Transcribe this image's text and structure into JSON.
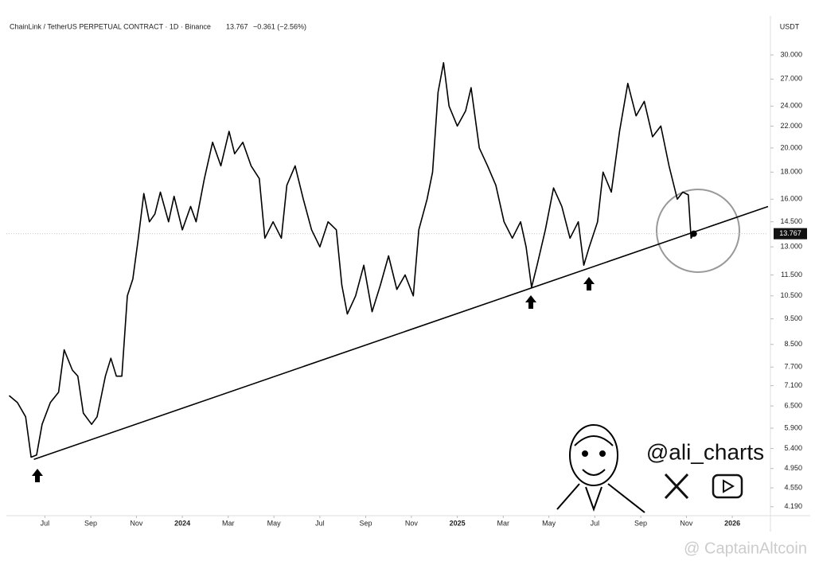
{
  "chart_data": {
    "type": "line",
    "title": "ChainLink / TetherUS PERPETUAL CONTRACT · 1D · Binance",
    "last_price": 13.767,
    "change": "−0.361 (−2.56%)",
    "y_axis_label": "USDT",
    "watermark": "@ali_charts",
    "source": "@ CaptainAltcoin",
    "log_scale": true,
    "grid": false,
    "x": [
      2023.37,
      2023.4,
      2023.43,
      2023.45,
      2023.47,
      2023.49,
      2023.52,
      2023.55,
      2023.57,
      2023.6,
      2023.62,
      2023.64,
      2023.67,
      2023.69,
      2023.72,
      2023.74,
      2023.76,
      2023.78,
      2023.8,
      2023.82,
      2023.84,
      2023.86,
      2023.88,
      2023.9,
      2023.92,
      2023.95,
      2023.97,
      2024.0,
      2024.03,
      2024.05,
      2024.08,
      2024.11,
      2024.14,
      2024.17,
      2024.19,
      2024.22,
      2024.25,
      2024.28,
      2024.3,
      2024.33,
      2024.36,
      2024.38,
      2024.41,
      2024.44,
      2024.47,
      2024.5,
      2024.53,
      2024.56,
      2024.58,
      2024.6,
      2024.63,
      2024.66,
      2024.69,
      2024.72,
      2024.75,
      2024.78,
      2024.81,
      2024.84,
      2024.86,
      2024.89,
      2024.91,
      2024.93,
      2024.95,
      2024.97,
      2025.0,
      2025.03,
      2025.05,
      2025.08,
      2025.11,
      2025.14,
      2025.17,
      2025.2,
      2025.23,
      2025.25,
      2025.27,
      2025.29,
      2025.32,
      2025.35,
      2025.38,
      2025.41,
      2025.44,
      2025.46,
      2025.48,
      2025.51,
      2025.53,
      2025.56,
      2025.59,
      2025.62,
      2025.65,
      2025.68,
      2025.71,
      2025.74,
      2025.77,
      2025.8,
      2025.82,
      2025.84,
      2025.85,
      2025.86
    ],
    "series": [
      {
        "color": "#000000",
        "values": [
          6.8,
          6.6,
          6.2,
          5.2,
          5.25,
          6.0,
          6.6,
          6.9,
          8.3,
          7.6,
          7.4,
          6.3,
          6.0,
          6.2,
          7.4,
          8.0,
          7.4,
          7.4,
          10.5,
          11.3,
          13.5,
          16.4,
          14.5,
          15.0,
          16.5,
          14.5,
          16.2,
          14.0,
          15.5,
          14.5,
          17.5,
          20.5,
          18.5,
          21.5,
          19.5,
          20.5,
          18.5,
          17.5,
          13.5,
          14.5,
          13.5,
          17.0,
          18.5,
          16.0,
          14.0,
          13.0,
          14.5,
          14.0,
          11.0,
          9.7,
          10.5,
          12.0,
          9.8,
          11.0,
          12.5,
          10.8,
          11.5,
          10.5,
          14.0,
          16.0,
          18.0,
          25.5,
          29.0,
          24.0,
          22.0,
          23.5,
          26.0,
          20.0,
          18.5,
          17.0,
          14.5,
          13.5,
          14.5,
          13.0,
          10.9,
          12.0,
          14.0,
          16.8,
          15.5,
          13.5,
          14.5,
          12.0,
          13.0,
          14.5,
          18.0,
          16.5,
          21.5,
          26.5,
          23.0,
          24.5,
          21.0,
          22.0,
          18.5,
          16.0,
          16.5,
          16.3,
          13.5,
          13.767
        ]
      }
    ],
    "trendline": {
      "x": [
        2023.46,
        2026.13
      ],
      "values": [
        5.15,
        15.5
      ]
    },
    "xlim": [
      2023.36,
      2026.13
    ],
    "xticks": [
      {
        "value": 2023.5,
        "label": "Jul"
      },
      {
        "value": 2023.667,
        "label": "Sep"
      },
      {
        "value": 2023.833,
        "label": "Nov"
      },
      2024,
      {
        "value": 2024.167,
        "label": "Mar"
      },
      {
        "value": 2024.333,
        "label": "May"
      },
      {
        "value": 2024.5,
        "label": "Jul"
      },
      {
        "value": 2024.667,
        "label": "Sep"
      },
      {
        "value": 2024.833,
        "label": "Nov"
      },
      2025,
      {
        "value": 2025.167,
        "label": "Mar"
      },
      {
        "value": 2025.333,
        "label": "May"
      },
      {
        "value": 2025.5,
        "label": "Jul"
      },
      {
        "value": 2025.667,
        "label": "Sep"
      },
      {
        "value": 2025.833,
        "label": "Nov"
      },
      2026
    ],
    "ylim": [
      4.03,
      32.6
    ],
    "yticks": [
      {
        "value": 30,
        "label": "30.000"
      },
      {
        "value": 27,
        "label": "27.000"
      },
      {
        "value": 24,
        "label": "24.000"
      },
      {
        "value": 22,
        "label": "22.000"
      },
      {
        "value": 20,
        "label": "20.000"
      },
      {
        "value": 18,
        "label": "18.000"
      },
      {
        "value": 16,
        "label": "16.000"
      },
      {
        "value": 14.5,
        "label": "14.500"
      },
      {
        "value": 13,
        "label": "13.000"
      },
      {
        "value": 11.5,
        "label": "11.500"
      },
      {
        "value": 10.5,
        "label": "10.500"
      },
      {
        "value": 9.5,
        "label": "9.500"
      },
      {
        "value": 8.5,
        "label": "8.500"
      },
      {
        "value": 7.7,
        "label": "7.700"
      },
      {
        "value": 7.1,
        "label": "7.100"
      },
      {
        "value": 6.5,
        "label": "6.500"
      },
      {
        "value": 5.9,
        "label": "5.900"
      },
      {
        "value": 5.4,
        "label": "5.400"
      },
      {
        "value": 4.95,
        "label": "4.950"
      },
      {
        "value": 4.55,
        "label": "4.550"
      },
      {
        "value": 4.19,
        "label": "4.190"
      }
    ]
  }
}
